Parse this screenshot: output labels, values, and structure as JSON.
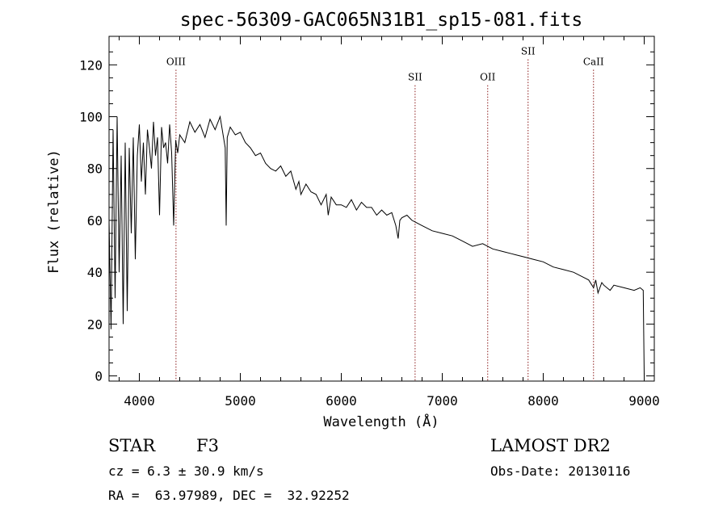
{
  "chart_data": {
    "type": "line",
    "title": "spec-56309-GAC065N31B1_sp15-081.fits",
    "xlabel": "Wavelength (Å)",
    "ylabel": "Flux (relative)",
    "xlim": [
      3700,
      9100
    ],
    "ylim": [
      -2,
      131
    ],
    "xticks": [
      4000,
      5000,
      6000,
      7000,
      8000,
      9000
    ],
    "yticks": [
      0,
      20,
      40,
      60,
      80,
      100,
      120
    ],
    "grid": false,
    "line_color": "#000000",
    "marker_color": "#8b1a1a",
    "series": [
      {
        "x": [
          3700,
          3720,
          3740,
          3760,
          3780,
          3800,
          3820,
          3840,
          3860,
          3880,
          3900,
          3920,
          3940,
          3960,
          3980,
          4000,
          4020,
          4040,
          4060,
          4080,
          4100,
          4120,
          4140,
          4160,
          4180,
          4200,
          4220,
          4240,
          4260,
          4280,
          4300,
          4320,
          4340,
          4360,
          4380,
          4400,
          4450,
          4500,
          4550,
          4600,
          4650,
          4700,
          4750,
          4800,
          4850,
          4860,
          4870,
          4900,
          4950,
          5000,
          5050,
          5100,
          5150,
          5200,
          5250,
          5300,
          5350,
          5400,
          5450,
          5500,
          5550,
          5580,
          5600,
          5650,
          5700,
          5750,
          5800,
          5850,
          5870,
          5900,
          5950,
          6000,
          6050,
          6100,
          6150,
          6200,
          6250,
          6300,
          6350,
          6400,
          6450,
          6500,
          6540,
          6563,
          6580,
          6600,
          6650,
          6700,
          6750,
          6800,
          6900,
          7000,
          7100,
          7200,
          7300,
          7400,
          7500,
          7600,
          7700,
          7800,
          7900,
          8000,
          8100,
          8200,
          8300,
          8400,
          8450,
          8498,
          8520,
          8542,
          8580,
          8600,
          8662,
          8700,
          8800,
          8900,
          8960,
          8990,
          9000
        ],
        "y": [
          60,
          18,
          95,
          30,
          100,
          40,
          85,
          20,
          90,
          25,
          88,
          55,
          92,
          45,
          85,
          97,
          75,
          90,
          70,
          95,
          88,
          80,
          98,
          85,
          92,
          62,
          96,
          88,
          90,
          82,
          97,
          86,
          58,
          91,
          86,
          93,
          90,
          98,
          94,
          97,
          92,
          99,
          95,
          100,
          88,
          58,
          92,
          96,
          93,
          94,
          90,
          88,
          85,
          86,
          82,
          80,
          79,
          81,
          77,
          79,
          72,
          75,
          70,
          74,
          71,
          70,
          66,
          70,
          62,
          69,
          66,
          66,
          65,
          68,
          64,
          67,
          65,
          65,
          62,
          64,
          62,
          63,
          58,
          53,
          60,
          61,
          62,
          60,
          59,
          58,
          56,
          55,
          54,
          52,
          50,
          51,
          49,
          48,
          47,
          46,
          45,
          44,
          42,
          41,
          40,
          38,
          37,
          34,
          37,
          32,
          36,
          35,
          33,
          35,
          34,
          33,
          34,
          33,
          0
        ]
      }
    ],
    "lines": [
      {
        "label": "OIII",
        "x": 4363,
        "label_y": 120
      },
      {
        "label": "SII",
        "x": 6731,
        "label_y": 114
      },
      {
        "label": "OII",
        "x": 7450,
        "label_y": 114
      },
      {
        "label": "SII",
        "x": 7850,
        "label_y": 124
      },
      {
        "label": "CaII",
        "x": 8498,
        "label_y": 120
      }
    ]
  },
  "info": {
    "object_class": "STAR",
    "subclass": "F3",
    "survey": "LAMOST DR2",
    "redshift": "cz = 6.3 ± 30.9 km/s",
    "obs_date": "Obs-Date: 20130116",
    "coords": "RA =  63.97989, DEC =  32.92252"
  }
}
